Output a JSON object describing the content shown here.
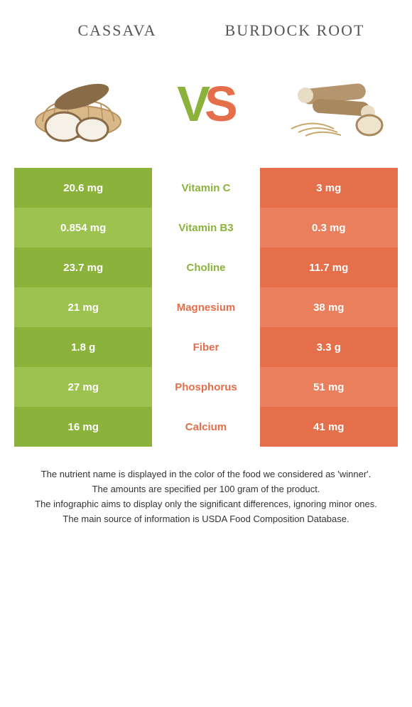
{
  "colors": {
    "left_main": "#8bb33c",
    "left_alt": "#9ec24f",
    "right_main": "#e46f4a",
    "right_alt": "#e97f5d",
    "mid_bg": "#ffffff",
    "text_dark": "#555555"
  },
  "header": {
    "left_title": "Cassava",
    "right_title": "Burdock Root"
  },
  "vs": {
    "v": "V",
    "s": "S"
  },
  "rows": [
    {
      "left": "20.6 mg",
      "nutrient": "Vitamin C",
      "right": "3 mg",
      "winner": "left"
    },
    {
      "left": "0.854 mg",
      "nutrient": "Vitamin B3",
      "right": "0.3 mg",
      "winner": "left"
    },
    {
      "left": "23.7 mg",
      "nutrient": "Choline",
      "right": "11.7 mg",
      "winner": "left"
    },
    {
      "left": "21 mg",
      "nutrient": "Magnesium",
      "right": "38 mg",
      "winner": "right"
    },
    {
      "left": "1.8 g",
      "nutrient": "Fiber",
      "right": "3.3 g",
      "winner": "right"
    },
    {
      "left": "27 mg",
      "nutrient": "Phosphorus",
      "right": "51 mg",
      "winner": "right"
    },
    {
      "left": "16 mg",
      "nutrient": "Calcium",
      "right": "41 mg",
      "winner": "right"
    }
  ],
  "footnotes": [
    "The nutrient name is displayed in the color of the food we considered as 'winner'.",
    "The amounts are specified per 100 gram of the product.",
    "The infographic aims to display only the significant differences, ignoring minor ones.",
    "The main source of information is USDA Food Composition Database."
  ]
}
